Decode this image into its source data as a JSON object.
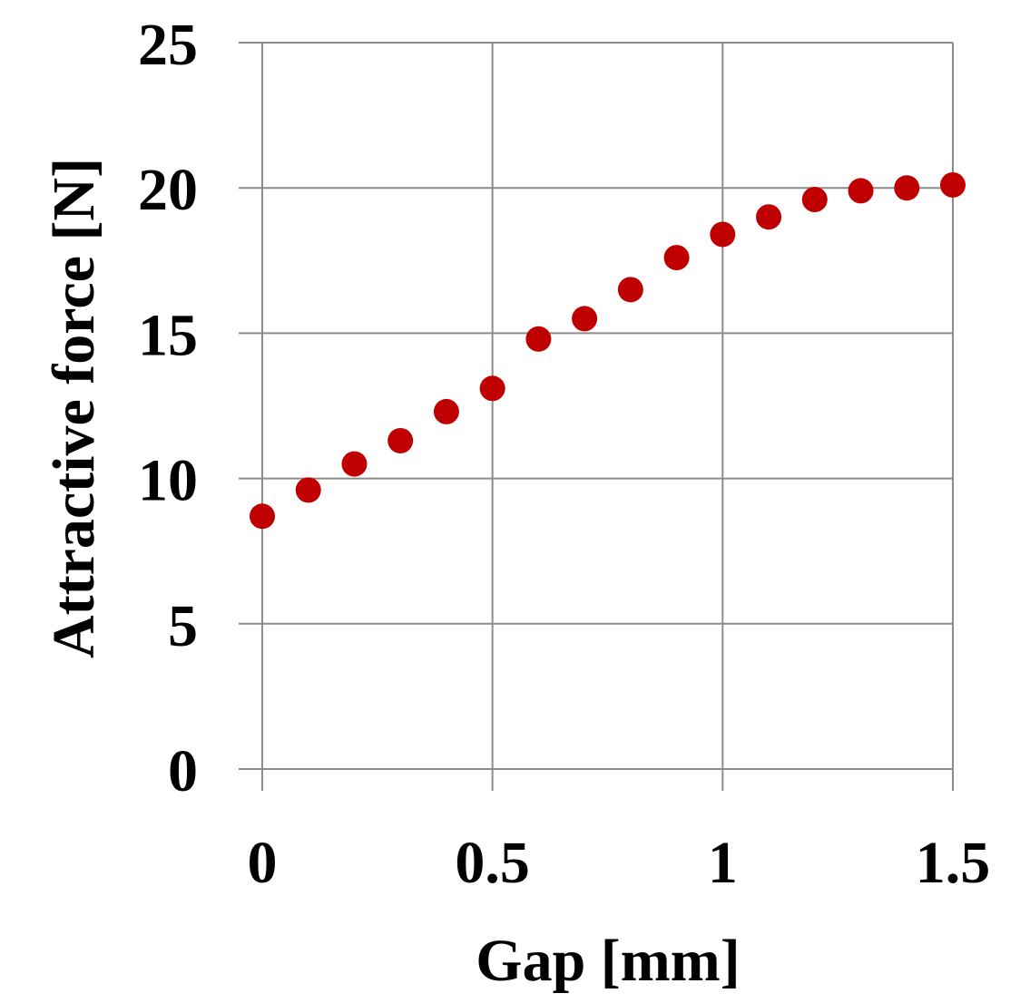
{
  "chart_data": {
    "type": "scatter",
    "xlabel": "Gap [mm]",
    "ylabel": "Attractive force [N]",
    "xlim": [
      0,
      1.5
    ],
    "ylim": [
      0,
      25
    ],
    "x_ticks": [
      0,
      0.5,
      1,
      1.5
    ],
    "x_tick_labels": [
      "0",
      "0.5",
      "1",
      "1.5"
    ],
    "y_ticks": [
      0,
      5,
      10,
      15,
      20,
      25
    ],
    "y_tick_labels": [
      "0",
      "5",
      "10",
      "15",
      "20",
      "25"
    ],
    "grid": true,
    "legend": "none",
    "marker_color": "#c00000",
    "series": [
      {
        "x": [
          0,
          0.1,
          0.2,
          0.3,
          0.4,
          0.5,
          0.6,
          0.7,
          0.8,
          0.9,
          1.0,
          1.1,
          1.2,
          1.3,
          1.4,
          1.5
        ],
        "y": [
          8.7,
          9.6,
          10.5,
          11.3,
          12.3,
          13.1,
          14.8,
          15.5,
          16.5,
          17.6,
          18.4,
          19.0,
          19.6,
          19.9,
          20.0,
          20.1
        ]
      }
    ]
  }
}
